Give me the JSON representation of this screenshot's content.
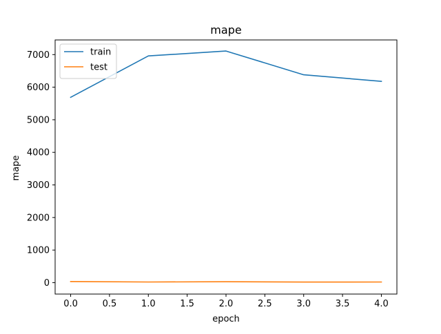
{
  "chart_data": {
    "type": "line",
    "title": "mape",
    "xlabel": "epoch",
    "ylabel": "mape",
    "x": [
      0,
      1,
      2,
      3,
      4
    ],
    "xlim": [
      -0.2,
      4.2
    ],
    "ylim": [
      -350,
      7450
    ],
    "xticks": [
      0.0,
      0.5,
      1.0,
      1.5,
      2.0,
      2.5,
      3.0,
      3.5,
      4.0
    ],
    "xtick_labels": [
      "0.0",
      "0.5",
      "1.0",
      "1.5",
      "2.0",
      "2.5",
      "3.0",
      "3.5",
      "4.0"
    ],
    "yticks": [
      0,
      1000,
      2000,
      3000,
      4000,
      5000,
      6000,
      7000
    ],
    "ytick_labels": [
      "0",
      "1000",
      "2000",
      "3000",
      "4000",
      "5000",
      "6000",
      "7000"
    ],
    "grid": false,
    "legend_position": "upper left",
    "series": [
      {
        "name": "train",
        "color": "#1f77b4",
        "values": [
          5690,
          6960,
          7110,
          6380,
          6180
        ]
      },
      {
        "name": "test",
        "color": "#ff7f0e",
        "values": [
          35,
          20,
          28,
          18,
          20
        ]
      }
    ]
  }
}
